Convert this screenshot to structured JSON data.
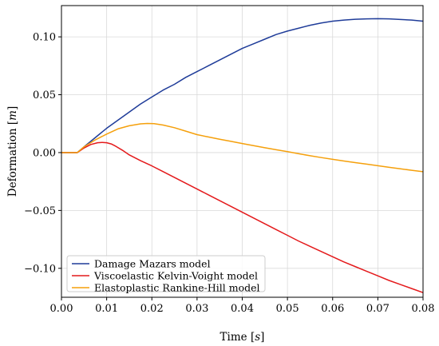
{
  "chart_data": {
    "type": "line",
    "title": "",
    "xlabel_text": "Time",
    "xlabel_unit": "s",
    "ylabel_text": "Deformation",
    "ylabel_unit": "m",
    "xlim": [
      0.0,
      0.08
    ],
    "ylim": [
      -0.125,
      0.127
    ],
    "xticks": [
      0.0,
      0.01,
      0.02,
      0.03,
      0.04,
      0.05,
      0.06,
      0.07,
      0.08
    ],
    "xtick_labels": [
      "0.00",
      "0.01",
      "0.02",
      "0.03",
      "0.04",
      "0.05",
      "0.06",
      "0.07",
      "0.08"
    ],
    "yticks": [
      -0.1,
      -0.05,
      0.0,
      0.05,
      0.1
    ],
    "ytick_labels": [
      "−0.10",
      "−0.05",
      "0.00",
      "0.05",
      "0.10"
    ],
    "grid": true,
    "legend_position": "lower-left",
    "series": [
      {
        "name": "Damage Mazars model",
        "color": "#1f3c99",
        "x": [
          0.0,
          0.0035,
          0.005,
          0.0075,
          0.01,
          0.0125,
          0.015,
          0.0175,
          0.02,
          0.0225,
          0.025,
          0.0275,
          0.03,
          0.0325,
          0.035,
          0.0375,
          0.04,
          0.0425,
          0.045,
          0.0475,
          0.05,
          0.0525,
          0.055,
          0.0575,
          0.06,
          0.0625,
          0.065,
          0.0675,
          0.07,
          0.0725,
          0.075,
          0.0775,
          0.08
        ],
        "y": [
          0.0,
          0.0,
          0.005,
          0.013,
          0.021,
          0.028,
          0.035,
          0.042,
          0.048,
          0.054,
          0.059,
          0.065,
          0.07,
          0.075,
          0.08,
          0.085,
          0.09,
          0.094,
          0.098,
          0.102,
          0.105,
          0.1075,
          0.11,
          0.112,
          0.1135,
          0.1145,
          0.1152,
          0.1155,
          0.1157,
          0.1155,
          0.115,
          0.1145,
          0.1135
        ]
      },
      {
        "name": "Viscoelastic Kelvin-Voight model",
        "color": "#e41a1c",
        "x": [
          0.0,
          0.0035,
          0.005,
          0.0065,
          0.008,
          0.009,
          0.01,
          0.011,
          0.012,
          0.0135,
          0.015,
          0.0175,
          0.02,
          0.0225,
          0.025,
          0.0275,
          0.03,
          0.0325,
          0.035,
          0.0375,
          0.04,
          0.0425,
          0.045,
          0.0475,
          0.05,
          0.0525,
          0.055,
          0.0575,
          0.06,
          0.0625,
          0.065,
          0.0675,
          0.07,
          0.0725,
          0.075,
          0.0775,
          0.08
        ],
        "y": [
          0.0,
          0.0,
          0.004,
          0.007,
          0.0085,
          0.0088,
          0.0085,
          0.0075,
          0.0055,
          0.002,
          -0.002,
          -0.007,
          -0.0115,
          -0.0165,
          -0.0215,
          -0.0265,
          -0.0315,
          -0.0365,
          -0.0415,
          -0.0465,
          -0.0515,
          -0.0565,
          -0.0615,
          -0.0665,
          -0.0715,
          -0.0765,
          -0.081,
          -0.0855,
          -0.09,
          -0.0945,
          -0.0985,
          -0.1025,
          -0.1065,
          -0.1105,
          -0.114,
          -0.1175,
          -0.121
        ]
      },
      {
        "name": "Elastoplastic Rankine-Hill model",
        "color": "#f5a00c",
        "x": [
          0.0,
          0.0035,
          0.005,
          0.0075,
          0.01,
          0.0125,
          0.015,
          0.0175,
          0.019,
          0.0205,
          0.0225,
          0.025,
          0.0275,
          0.03,
          0.0325,
          0.035,
          0.0375,
          0.04,
          0.0425,
          0.045,
          0.0475,
          0.05,
          0.0525,
          0.055,
          0.0575,
          0.06,
          0.0625,
          0.065,
          0.0675,
          0.07,
          0.0725,
          0.075,
          0.0775,
          0.08
        ],
        "y": [
          0.0,
          0.0,
          0.005,
          0.011,
          0.016,
          0.0205,
          0.0232,
          0.0248,
          0.0252,
          0.025,
          0.0238,
          0.0215,
          0.0185,
          0.0155,
          0.0135,
          0.0115,
          0.0097,
          0.0078,
          0.006,
          0.0042,
          0.0025,
          0.0008,
          -0.001,
          -0.0027,
          -0.0043,
          -0.0058,
          -0.0073,
          -0.0087,
          -0.01,
          -0.0113,
          -0.0127,
          -0.014,
          -0.0153,
          -0.0165
        ]
      }
    ]
  }
}
